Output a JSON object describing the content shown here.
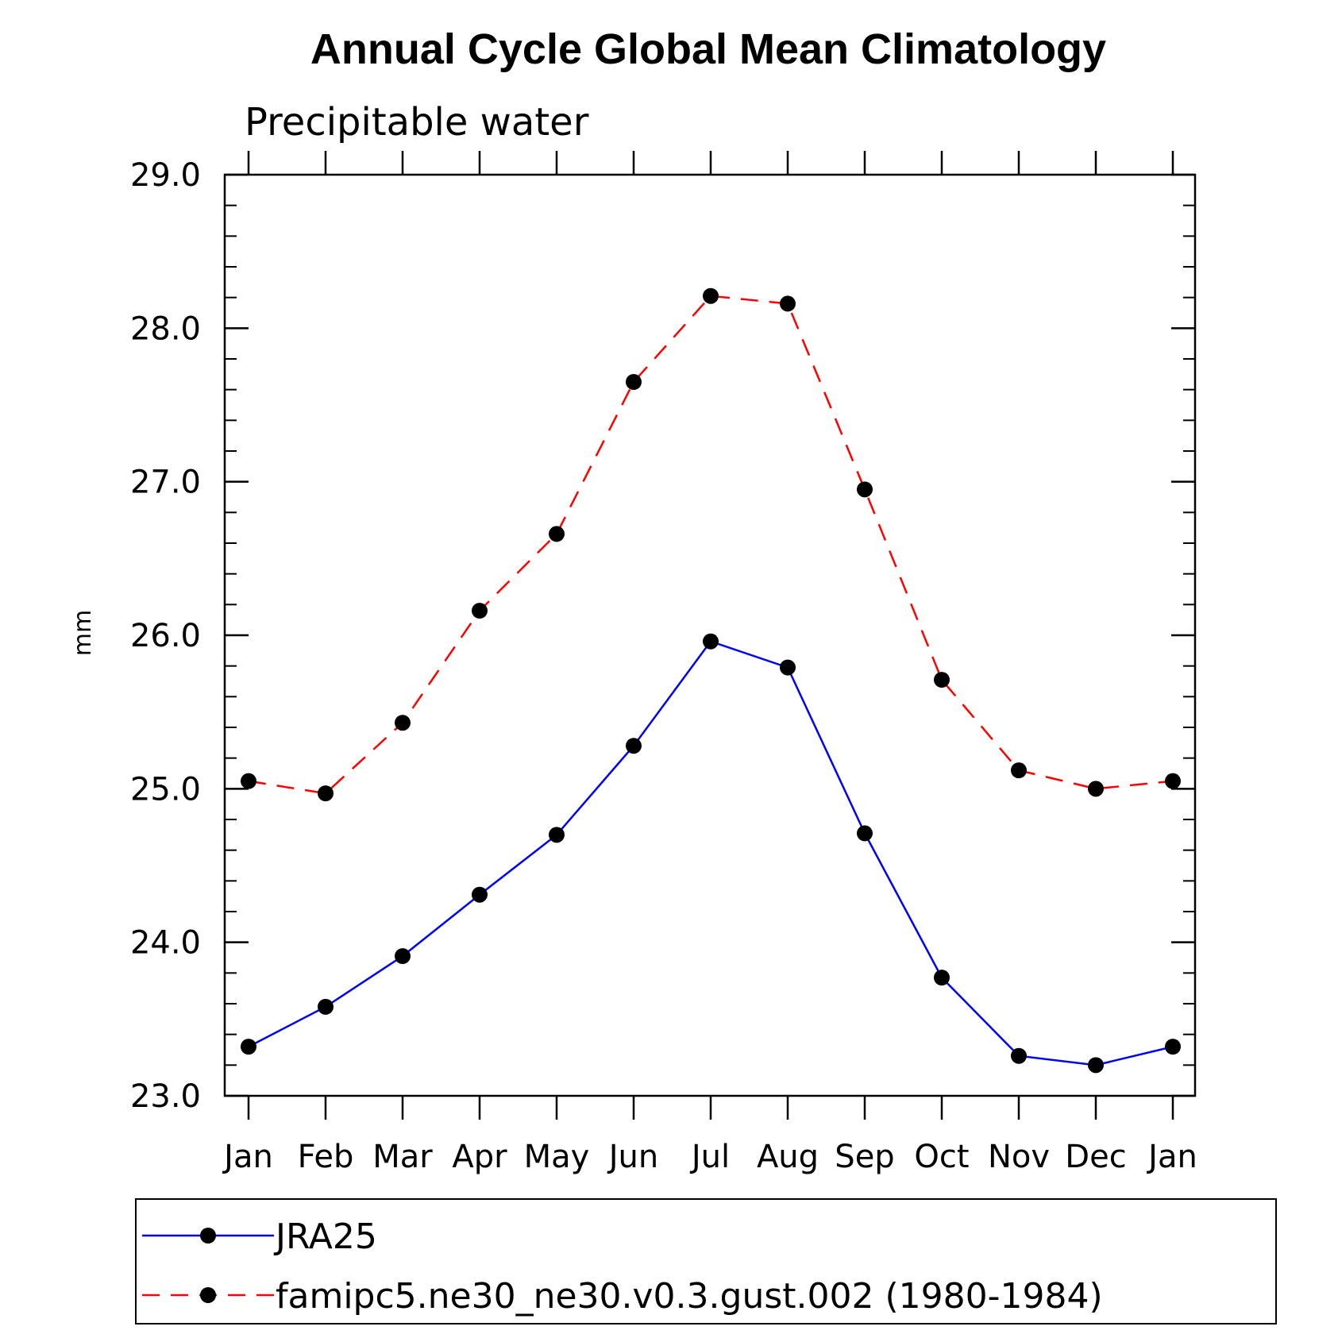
{
  "chart_data": {
    "type": "line",
    "title": "Annual Cycle Global Mean Climatology",
    "subtitle": "Precipitable water",
    "xlabel": "",
    "ylabel": "mm",
    "categories": [
      "Jan",
      "Feb",
      "Mar",
      "Apr",
      "May",
      "Jun",
      "Jul",
      "Aug",
      "Sep",
      "Oct",
      "Nov",
      "Dec",
      "Jan"
    ],
    "ylim": [
      23.0,
      29.0
    ],
    "yticks": [
      "23.0",
      "24.0",
      "25.0",
      "26.0",
      "27.0",
      "28.0",
      "29.0"
    ],
    "series": [
      {
        "name": "JRA25",
        "color": "#0000ff",
        "style": "solid",
        "marker": "filled-circle",
        "values": [
          23.32,
          23.58,
          23.91,
          24.31,
          24.7,
          25.28,
          25.96,
          25.79,
          24.71,
          23.77,
          23.26,
          23.2,
          23.32
        ]
      },
      {
        "name": "famipc5.ne30_ne30.v0.3.gust.002 (1980-1984)",
        "color": "#ff0000",
        "style": "dashed",
        "marker": "filled-circle",
        "values": [
          25.05,
          24.97,
          25.43,
          26.16,
          26.66,
          27.65,
          28.21,
          28.16,
          26.95,
          25.71,
          25.12,
          25.0,
          25.05
        ]
      }
    ],
    "legend_position": "bottom"
  }
}
